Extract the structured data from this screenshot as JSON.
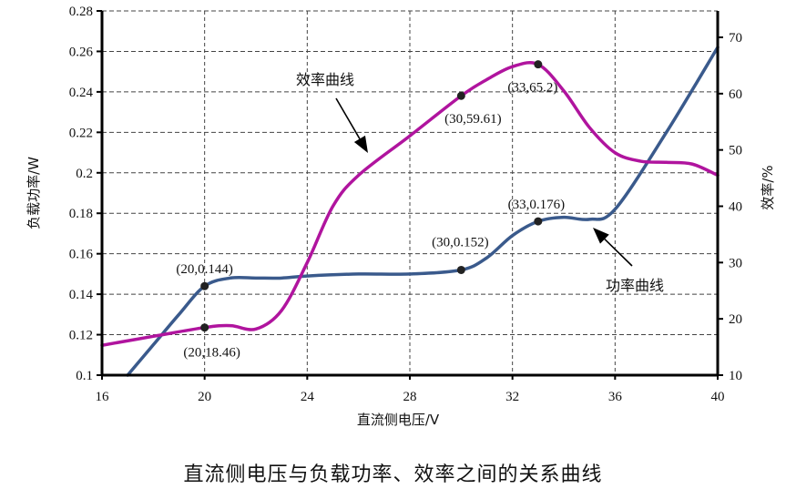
{
  "caption": "直流侧电压与负载功率、效率之间的关系曲线",
  "colors": {
    "power": "#3a5a8c",
    "efficiency": "#b0149e",
    "grid": "#444444",
    "axis": "#000000",
    "marker": "#222222"
  },
  "chart_data": {
    "type": "line",
    "title": "直流侧电压与负载功率、效率之间的关系曲线",
    "xlabel": "直流侧电压/V",
    "ylabel": "负载功率/W",
    "y2label": "效率/%",
    "xlim": [
      16,
      40
    ],
    "ylim": [
      0.1,
      0.28
    ],
    "y2lim": [
      10,
      75
    ],
    "x_ticks": [
      "16",
      "20",
      "24",
      "28",
      "32",
      "36",
      "40"
    ],
    "y_ticks": [
      "0.1",
      "0.12",
      "0.14",
      "0.16",
      "0.18",
      "0.2",
      "0.22",
      "0.24",
      "0.26",
      "0.28"
    ],
    "y2_ticks": [
      "10",
      "20",
      "30",
      "40",
      "50",
      "60",
      "70"
    ],
    "grid": true,
    "legend": "none (curves labeled by arrows)",
    "series": [
      {
        "name": "功率曲线",
        "axis": "left",
        "x": [
          17,
          18,
          19,
          20,
          21,
          22,
          23,
          24,
          26,
          28,
          30,
          31,
          32,
          33,
          34,
          35,
          36,
          38,
          40
        ],
        "values": [
          0.1,
          0.115,
          0.13,
          0.144,
          0.148,
          0.148,
          0.148,
          0.149,
          0.15,
          0.15,
          0.152,
          0.158,
          0.169,
          0.176,
          0.178,
          0.177,
          0.182,
          0.22,
          0.262
        ]
      },
      {
        "name": "效率曲线",
        "axis": "right",
        "x": [
          16,
          18,
          20,
          21,
          22,
          23,
          24,
          25,
          26,
          28,
          30,
          31,
          32,
          33,
          34,
          35,
          36,
          37,
          38,
          39,
          40
        ],
        "values": [
          15.3,
          16.9,
          18.46,
          18.8,
          18.2,
          21.5,
          30.0,
          40.0,
          45.5,
          52.5,
          59.61,
          62.5,
          64.8,
          65.2,
          60.5,
          54.0,
          49.5,
          48.0,
          47.8,
          47.5,
          45.5
        ]
      }
    ],
    "annotations": [
      {
        "text": "(20,0.144)",
        "x": 20,
        "y": 0.144,
        "axis": "left"
      },
      {
        "text": "(30,0.152)",
        "x": 30,
        "y": 0.152,
        "axis": "left"
      },
      {
        "text": "(33,0.176)",
        "x": 33,
        "y": 0.176,
        "axis": "left"
      },
      {
        "text": "(20,18.46)",
        "x": 20,
        "y": 18.46,
        "axis": "right"
      },
      {
        "text": "(30,59.61)",
        "x": 30,
        "y": 59.61,
        "axis": "right"
      },
      {
        "text": "(33,65.2)",
        "x": 33,
        "y": 65.2,
        "axis": "right"
      },
      {
        "text": "效率曲线",
        "arrow_to": [
          25.4,
          47
        ]
      },
      {
        "text": "功率曲线",
        "arrow_to": [
          35.0,
          0.174
        ]
      }
    ]
  }
}
